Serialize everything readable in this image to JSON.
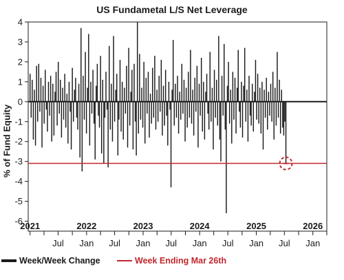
{
  "chart_data": {
    "type": "bar",
    "title": "US Fundametal L/S Net Leverage",
    "ylabel": "% of Fund Equity",
    "xlabel": "",
    "ylim": [
      -6.5,
      4
    ],
    "xlim": [
      "2020-12-20",
      "2026-04-01"
    ],
    "yticks": [
      4,
      3,
      2,
      1,
      0,
      -1,
      -2,
      -3,
      -4,
      -5,
      -6
    ],
    "year_labels": [
      {
        "label": "2021",
        "date": "2021-01-01"
      },
      {
        "label": "2022",
        "date": "2022-01-01"
      },
      {
        "label": "2023",
        "date": "2023-01-01"
      },
      {
        "label": "2024",
        "date": "2024-01-01"
      },
      {
        "label": "2025",
        "date": "2025-01-01"
      },
      {
        "label": "2026",
        "date": "2026-01-01"
      }
    ],
    "month_labels": [
      {
        "label": "Jul",
        "date": "2021-07-01"
      },
      {
        "label": "Jan",
        "date": "2022-01-01"
      },
      {
        "label": "Jul",
        "date": "2022-07-01"
      },
      {
        "label": "Jan",
        "date": "2023-01-01"
      },
      {
        "label": "Jul",
        "date": "2023-07-01"
      },
      {
        "label": "Jan",
        "date": "2024-01-01"
      },
      {
        "label": "Jul",
        "date": "2024-07-01"
      },
      {
        "label": "Jan",
        "date": "2025-01-01"
      },
      {
        "label": "Jul",
        "date": "2025-07-01"
      },
      {
        "label": "Jan",
        "date": "2026-01-01"
      }
    ],
    "grid": false,
    "legend_position": "bottom",
    "series": [
      {
        "name": "Week/Week Change",
        "color": "#1a1a1a",
        "start_date": "2021-01-01",
        "interval_days": 7,
        "values": [
          1.4,
          -0.8,
          1.1,
          -1.9,
          0.6,
          -2.2,
          1.8,
          -1.0,
          1.9,
          -0.5,
          1.2,
          -2.3,
          0.8,
          -1.1,
          1.6,
          -0.4,
          -1.5,
          1.0,
          -0.7,
          1.3,
          -2.0,
          0.9,
          -1.7,
          0.5,
          1.5,
          -1.2,
          2.0,
          -0.6,
          1.1,
          -1.8,
          0.7,
          -0.9,
          1.4,
          -1.3,
          0.4,
          -2.1,
          1.0,
          -0.5,
          -2.4,
          1.7,
          -1.0,
          0.6,
          1.2,
          -0.8,
          -1.4,
          0.9,
          -2.8,
          3.7,
          -3.5,
          1.3,
          -0.9,
          2.5,
          -1.6,
          0.7,
          3.4,
          -2.2,
          1.0,
          -0.6,
          1.6,
          -1.1,
          -2.9,
          0.8,
          1.9,
          -0.7,
          -1.3,
          2.3,
          -2.6,
          1.1,
          -3.1,
          -0.8,
          1.5,
          -0.4,
          -3.3,
          2.8,
          -1.4,
          0.9,
          -2.0,
          3.3,
          -1.0,
          0.6,
          1.4,
          -2.7,
          -0.9,
          2.1,
          -1.5,
          1.0,
          -1.9,
          0.7,
          -0.6,
          1.8,
          -2.3,
          2.7,
          -1.2,
          0.5,
          1.6,
          -2.4,
          1.9,
          -1.0,
          -2.7,
          4.0,
          -1.6,
          2.4,
          -0.9,
          0.7,
          -1.3,
          2.0,
          -2.1,
          1.2,
          -0.6,
          1.5,
          -1.8,
          0.4,
          -1.1,
          1.7,
          -0.8,
          2.3,
          -1.4,
          0.6,
          -1.0,
          1.3,
          -0.5,
          2.1,
          -1.7,
          0.8,
          -1.2,
          1.6,
          -0.7,
          -2.2,
          1.0,
          -0.4,
          -4.3,
          0.6,
          3.1,
          -1.2,
          0.9,
          -0.8,
          1.3,
          -1.6,
          0.5,
          -0.9,
          1.9,
          -0.6,
          1.1,
          -2.0,
          0.7,
          -1.3,
          1.5,
          -0.8,
          2.6,
          -1.1,
          0.6,
          -1.7,
          1.2,
          -0.5,
          1.8,
          -2.3,
          0.9,
          -0.7,
          2.2,
          -1.5,
          1.0,
          -1.9,
          0.5,
          1.4,
          -0.6,
          -1.4,
          2.5,
          -1.0,
          0.7,
          -2.4,
          1.6,
          -0.8,
          1.1,
          -1.2,
          3.3,
          -1.9,
          -3.0,
          1.3,
          -0.7,
          2.9,
          -1.4,
          -5.6,
          0.8,
          2.0,
          -1.1,
          0.6,
          -2.1,
          1.5,
          -0.9,
          1.2,
          -1.6,
          0.7,
          2.6,
          -0.5,
          -1.3,
          1.0,
          -1.8,
          0.8,
          2.7,
          -1.0,
          0.6,
          -2.0,
          1.3,
          -0.7,
          -1.2,
          0.9,
          -1.5,
          0.5,
          2.1,
          -0.9,
          1.4,
          -1.1,
          0.7,
          -1.6,
          1.0,
          -2.4,
          0.6,
          -0.8,
          1.2,
          -1.4,
          0.5,
          -0.7,
          0.9,
          -1.0,
          1.5,
          -1.9,
          0.7,
          -1.2,
          2.5,
          -0.8,
          1.1,
          -1.6,
          0.6,
          -1.3,
          -1.7,
          -1.0,
          -3.1
        ]
      },
      {
        "name": "Week Ending Mar 26th",
        "color": "#c0272d",
        "value": -3.1
      }
    ]
  }
}
